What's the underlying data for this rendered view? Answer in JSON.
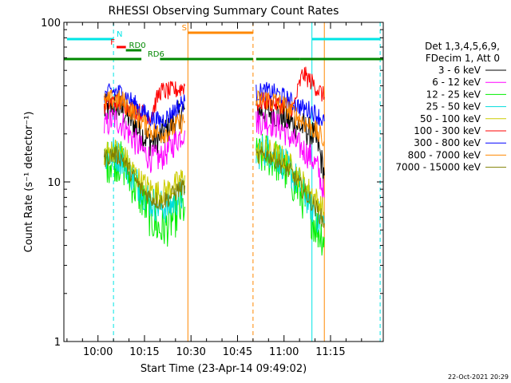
{
  "chart_data": {
    "type": "line",
    "title": "RHESSI Observing Summary Count Rates",
    "xlabel": "Start Time (23-Apr-14 09:49:02)",
    "ylabel": "Count Rate (s⁻¹ detector⁻¹)",
    "yscale": "log",
    "ylim": [
      1,
      100
    ],
    "xlim": [
      "09:49",
      "11:32"
    ],
    "xticks": [
      "10:00",
      "10:15",
      "10:30",
      "10:45",
      "11:00",
      "11:15"
    ],
    "yticks": [
      "1",
      "10",
      "100"
    ],
    "grid": false,
    "legend_position": "right",
    "legend_header": [
      "Det 1,3,4,5,6,9,",
      "FDecim 1, Att 0"
    ],
    "footer": "22-Oct-2021 20:29",
    "series": [
      {
        "name": "3 - 6 keV",
        "color": "#000000",
        "x": [
          "10:02",
          "10:05",
          "10:08",
          "10:11",
          "10:14",
          "10:17",
          "10:20",
          "10:23",
          "10:26",
          "10:28",
          "10:51",
          "10:54",
          "10:57",
          "11:00",
          "11:03",
          "11:06",
          "11:09",
          "11:11",
          "11:13"
        ],
        "y": [
          28,
          30,
          28,
          24,
          20,
          18,
          19,
          22,
          26,
          29,
          28,
          28,
          27,
          25,
          23,
          22,
          20,
          17,
          11
        ]
      },
      {
        "name": "6 - 12 keV",
        "color": "#ff00ff",
        "x": [
          "10:02",
          "10:05",
          "10:08",
          "10:11",
          "10:14",
          "10:17",
          "10:20",
          "10:23",
          "10:26",
          "10:28",
          "10:51",
          "10:54",
          "10:57",
          "11:00",
          "11:03",
          "11:06",
          "11:09",
          "11:11",
          "11:13"
        ],
        "y": [
          22,
          25,
          23,
          19,
          16,
          14,
          14,
          16,
          19,
          21,
          24,
          24,
          23,
          21,
          18,
          16,
          14,
          12,
          8
        ]
      },
      {
        "name": "12 - 25 keV",
        "color": "#00ee00",
        "x": [
          "10:02",
          "10:05",
          "10:08",
          "10:11",
          "10:14",
          "10:17",
          "10:20",
          "10:23",
          "10:26",
          "10:28",
          "10:51",
          "10:54",
          "10:57",
          "11:00",
          "11:03",
          "11:06",
          "11:09",
          "11:11",
          "11:13"
        ],
        "y": [
          13,
          14,
          13,
          10,
          8,
          6,
          5,
          5.5,
          6.5,
          7,
          14,
          15,
          14,
          12,
          10,
          8,
          6,
          5,
          4.5
        ]
      },
      {
        "name": "25 - 50 keV",
        "color": "#00dddd",
        "x": [
          "10:02",
          "10:05",
          "10:08",
          "10:11",
          "10:14",
          "10:17",
          "10:20",
          "10:23",
          "10:26",
          "10:28",
          "10:51",
          "10:54",
          "10:57",
          "11:00",
          "11:03",
          "11:06",
          "11:09",
          "11:11",
          "11:13"
        ],
        "y": [
          14,
          15,
          14,
          11,
          9,
          7.5,
          7,
          7,
          8,
          8.5,
          15,
          16,
          15,
          13,
          11,
          9,
          7,
          6,
          5.5
        ]
      },
      {
        "name": "50 - 100 keV",
        "color": "#cccc00",
        "x": [
          "10:02",
          "10:05",
          "10:08",
          "10:11",
          "10:14",
          "10:17",
          "10:20",
          "10:23",
          "10:26",
          "10:28",
          "10:51",
          "10:54",
          "10:57",
          "11:00",
          "11:03",
          "11:06",
          "11:09",
          "11:11",
          "11:13"
        ],
        "y": [
          15,
          16,
          15,
          12,
          10,
          9,
          8.5,
          9,
          10,
          11,
          15,
          16,
          15,
          14,
          12,
          10,
          8.5,
          7.5,
          6.5
        ]
      },
      {
        "name": "100 - 300 keV",
        "color": "#ff0000",
        "x": [
          "10:02",
          "10:05",
          "10:08",
          "10:11",
          "10:14",
          "10:17",
          "10:20",
          "10:23",
          "10:26",
          "10:28",
          "10:51",
          "10:54",
          "10:57",
          "11:00",
          "11:03",
          "11:06",
          "11:09",
          "11:11",
          "11:13"
        ],
        "y": [
          30,
          32,
          31,
          29,
          27,
          26,
          37,
          37,
          38,
          40,
          31,
          32,
          31,
          30,
          29,
          48,
          42,
          38,
          34
        ]
      },
      {
        "name": "300 - 800 keV",
        "color": "#0000ff",
        "x": [
          "10:02",
          "10:05",
          "10:08",
          "10:11",
          "10:14",
          "10:17",
          "10:20",
          "10:23",
          "10:26",
          "10:28",
          "10:51",
          "10:54",
          "10:57",
          "11:00",
          "11:03",
          "11:06",
          "11:09",
          "11:11",
          "11:13"
        ],
        "y": [
          35,
          37,
          36,
          32,
          28,
          25,
          24,
          26,
          30,
          32,
          36,
          37,
          36,
          34,
          31,
          29,
          28,
          26,
          24
        ]
      },
      {
        "name": "800 - 7000 keV",
        "color": "#ff8800",
        "x": [
          "10:02",
          "10:05",
          "10:08",
          "10:11",
          "10:14",
          "10:17",
          "10:20",
          "10:23",
          "10:26",
          "10:28",
          "10:51",
          "10:54",
          "10:57",
          "11:00",
          "11:03",
          "11:06",
          "11:09",
          "11:11",
          "11:13"
        ],
        "y": [
          31,
          33,
          32,
          28,
          24,
          21,
          20,
          21,
          23,
          24,
          32,
          33,
          32,
          30,
          27,
          24,
          22,
          20,
          18
        ]
      },
      {
        "name": "7000 - 15000 keV",
        "color": "#808000",
        "x": [
          "10:02",
          "10:05",
          "10:08",
          "10:11",
          "10:14",
          "10:17",
          "10:20",
          "10:23",
          "10:26",
          "10:28",
          "10:51",
          "10:54",
          "10:57",
          "11:00",
          "11:03",
          "11:06",
          "11:09",
          "11:11",
          "11:13"
        ],
        "y": [
          14,
          15,
          14,
          11,
          9,
          8,
          7.5,
          8,
          9,
          9.5,
          14,
          15,
          14,
          12.5,
          11,
          9,
          7.5,
          6.5,
          5.5
        ]
      }
    ],
    "flags": [
      {
        "label": "N",
        "color": "#00e5e5",
        "label_at": "10:06",
        "segments": [
          [
            "09:50",
            "10:05"
          ],
          [
            "11:09",
            "11:31"
          ]
        ]
      },
      {
        "label": "F",
        "color": "#ff0000",
        "label_at": "10:04",
        "segments": [
          [
            "10:06",
            "10:09"
          ]
        ]
      },
      {
        "label": "RD0",
        "color": "#008800",
        "label_at": "10:10",
        "segments": [
          [
            "10:09",
            "10:14"
          ]
        ]
      },
      {
        "label": "RD6",
        "color": "#008800",
        "label_at": "10:16",
        "segments": [
          [
            "09:49",
            "10:14"
          ],
          [
            "10:20",
            "10:50"
          ],
          [
            "10:51",
            "11:05"
          ],
          [
            "11:05",
            "11:32"
          ]
        ]
      },
      {
        "label": "S",
        "color": "#ff8800",
        "label_at": "10:27",
        "segments": [
          [
            "10:29",
            "10:50"
          ]
        ]
      }
    ],
    "vlines": [
      {
        "x": "10:05",
        "color": "#00e5e5",
        "style": "dashed"
      },
      {
        "x": "10:29",
        "color": "#ff8800",
        "style": "solid"
      },
      {
        "x": "10:50",
        "color": "#ff8800",
        "style": "dashed"
      },
      {
        "x": "11:09",
        "color": "#00e5e5",
        "style": "solid"
      },
      {
        "x": "11:13",
        "color": "#ff8800",
        "style": "solid"
      },
      {
        "x": "11:31",
        "color": "#00e5e5",
        "style": "dashed"
      }
    ]
  }
}
